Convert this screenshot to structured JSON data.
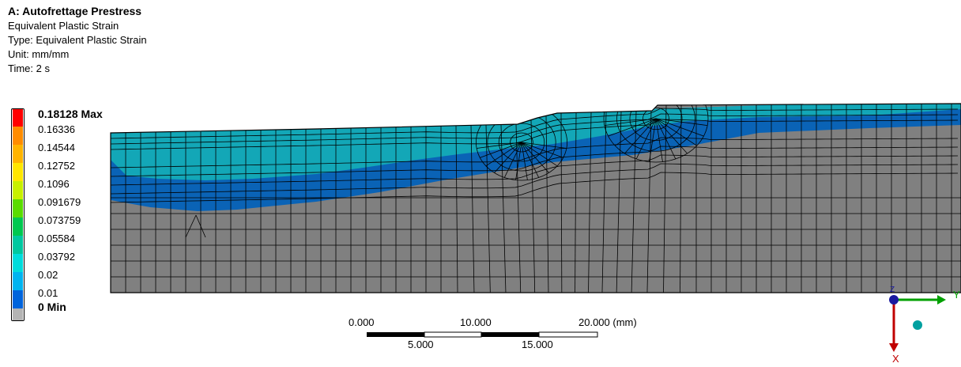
{
  "header": {
    "title": "A: Autofrettage Prestress",
    "result": "Equivalent Plastic Strain",
    "type": "Type: Equivalent Plastic Strain",
    "unit": "Unit: mm/mm",
    "time": "Time: 2 s"
  },
  "legend": {
    "items": [
      {
        "label": "0.18128 Max",
        "color": "#ff0000",
        "bold": true
      },
      {
        "label": "0.16336",
        "color": "#ff8c00",
        "bold": false
      },
      {
        "label": "0.14544",
        "color": "#ffb400",
        "bold": false
      },
      {
        "label": "0.12752",
        "color": "#ffe600",
        "bold": false
      },
      {
        "label": "0.1096",
        "color": "#c8f000",
        "bold": false
      },
      {
        "label": "0.091679",
        "color": "#5adc00",
        "bold": false
      },
      {
        "label": "0.073759",
        "color": "#00c850",
        "bold": false
      },
      {
        "label": "0.05584",
        "color": "#00c8a0",
        "bold": false
      },
      {
        "label": "0.03792",
        "color": "#00dcdc",
        "bold": false
      },
      {
        "label": "0.02",
        "color": "#00b4f0",
        "bold": false
      },
      {
        "label": "0.01",
        "color": "#0064dc",
        "bold": false
      },
      {
        "label": "0 Min",
        "color": "#b4b4b4",
        "bold": true
      }
    ]
  },
  "model_colors": {
    "teal": "#13a7b7",
    "blue": "#0a63b6",
    "grey": "#808080",
    "mesh": "#000000"
  },
  "scale_bar": {
    "top_labels": [
      "0.000",
      "10.000",
      "20.000 (mm)"
    ],
    "bottom_labels": [
      "5.000",
      "15.000"
    ]
  },
  "triad": {
    "x_label": "X",
    "y_label": "Y",
    "z_label": "Z",
    "x_color": "#c00000",
    "y_color": "#00a000",
    "z_color": "#1a1aa0",
    "iso_color": "#00a0a0"
  }
}
